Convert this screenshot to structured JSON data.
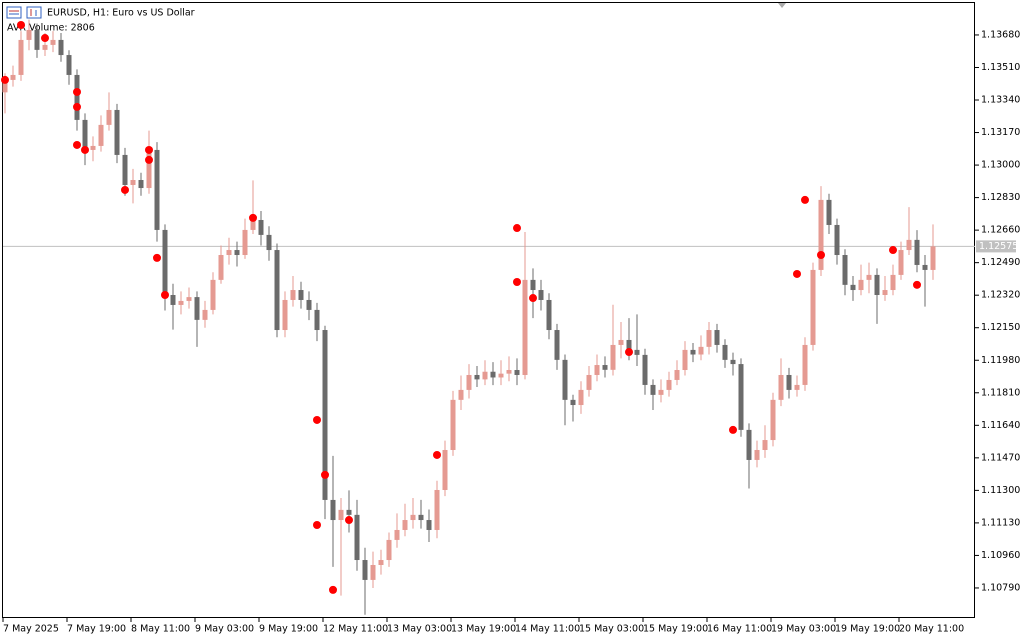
{
  "chart_data": {
    "type": "candlestick",
    "title": "EURUSD, H1:  Euro vs US Dollar",
    "indicator": "AVR Volume: 2806",
    "up_color": "#e59a92",
    "down_color": "#6b6b6b",
    "open": [
      1.1338,
      1.13445,
      1.13471,
      1.13654,
      1.13706,
      1.13602,
      1.13628,
      1.13654,
      1.13575,
      1.13471,
      1.13236,
      1.13079,
      1.131,
      1.1321,
      1.13288,
      1.13053,
      1.12896,
      1.12922,
      1.1288,
      1.13079,
      1.12661,
      1.12321,
      1.12269,
      1.1229,
      1.1231,
      1.12191,
      1.12243,
      1.124,
      1.1253,
      1.12556,
      1.1253,
      1.12661,
      1.12713,
      1.12635,
      1.12556,
      1.12138,
      1.12295,
      1.12347,
      1.12295,
      1.12243,
      1.12138,
      1.1125,
      1.11145,
      1.11198,
      1.11172,
      1.10936,
      1.10832,
      1.1091,
      1.10936,
      1.11041,
      1.11093,
      1.11145,
      1.11172,
      1.11145,
      1.11093,
      1.11302,
      1.11511,
      1.11773,
      1.11825,
      1.11903,
      1.1188,
      1.1192,
      1.1189,
      1.1191,
      1.11929,
      1.11903,
      1.124,
      1.12347,
      1.12295,
      1.12138,
      1.11982,
      1.11773,
      1.11746,
      1.11825,
      1.11903,
      1.11955,
      1.1193,
      1.1206,
      1.12086,
      1.12034,
      1.12008,
      1.11851,
      1.11799,
      1.11825,
      1.11877,
      1.11929,
      1.12034,
      1.1201,
      1.1205,
      1.12138,
      1.1206,
      1.11982,
      1.1196,
      1.11616,
      1.11459,
      1.11511,
      1.11563,
      1.11773,
      1.11903,
      1.11825,
      1.11851,
      1.1206,
      1.12452,
      1.12818,
      1.12687,
      1.1253,
      1.12374,
      1.12347,
      1.124,
      1.12426,
      1.12321,
      1.12347,
      1.12426,
      1.12556,
      1.12609,
      1.12478,
      1.12452
    ],
    "high": [
      1.1348,
      1.1352,
      1.137,
      1.1376,
      1.1374,
      1.1369,
      1.137,
      1.1369,
      1.136,
      1.135,
      1.1327,
      1.1315,
      1.1326,
      1.1338,
      1.1332,
      1.1309,
      1.1298,
      1.1296,
      1.1318,
      1.1312,
      1.1269,
      1.1238,
      1.1234,
      1.1236,
      1.1234,
      1.1229,
      1.1244,
      1.1258,
      1.1262,
      1.126,
      1.1272,
      1.1292,
      1.1276,
      1.1268,
      1.1259,
      1.1234,
      1.1242,
      1.1239,
      1.1234,
      1.1228,
      1.1216,
      1.1148,
      1.1126,
      1.113,
      1.1125,
      1.11,
      1.1098,
      1.1099,
      1.1108,
      1.1118,
      1.1123,
      1.1126,
      1.1125,
      1.112,
      1.1135,
      1.1156,
      1.1182,
      1.119,
      1.1196,
      1.1195,
      1.1198,
      1.1197,
      1.1198,
      1.12,
      1.1199,
      1.1265,
      1.1246,
      1.124,
      1.1233,
      1.1217,
      1.1201,
      1.118,
      1.1187,
      1.1195,
      1.1201,
      1.12,
      1.1227,
      1.1218,
      1.122,
      1.1222,
      1.1204,
      1.1188,
      1.1188,
      1.1192,
      1.1198,
      1.1208,
      1.1207,
      1.1211,
      1.1218,
      1.1217,
      1.1209,
      1.1202,
      1.1199,
      1.1165,
      1.1156,
      1.1164,
      1.1181,
      1.1199,
      1.1194,
      1.119,
      1.121,
      1.1249,
      1.1289,
      1.1285,
      1.1272,
      1.1256,
      1.1242,
      1.1248,
      1.1249,
      1.1246,
      1.1242,
      1.1248,
      1.126,
      1.1278,
      1.1266,
      1.1253,
      1.1269
    ],
    "low": [
      1.1327,
      1.1341,
      1.1344,
      1.136,
      1.1356,
      1.1357,
      1.1359,
      1.1354,
      1.1342,
      1.1318,
      1.13,
      1.1302,
      1.1307,
      1.1318,
      1.1301,
      1.1284,
      1.128,
      1.1284,
      1.1285,
      1.126,
      1.1224,
      1.1214,
      1.1222,
      1.1225,
      1.1205,
      1.1215,
      1.1222,
      1.1238,
      1.1248,
      1.1247,
      1.1251,
      1.1264,
      1.1258,
      1.125,
      1.121,
      1.121,
      1.1226,
      1.1225,
      1.1219,
      1.1208,
      1.1115,
      1.109,
      1.1075,
      1.1108,
      1.1088,
      1.1065,
      1.1079,
      1.1086,
      1.109,
      1.11,
      1.1106,
      1.111,
      1.111,
      1.1103,
      1.1105,
      1.1127,
      1.1148,
      1.1172,
      1.1178,
      1.1184,
      1.1185,
      1.1185,
      1.1185,
      1.1187,
      1.1185,
      1.1188,
      1.122,
      1.1224,
      1.1209,
      1.1193,
      1.1164,
      1.1166,
      1.117,
      1.1179,
      1.1187,
      1.1189,
      1.119,
      1.1199,
      1.1198,
      1.1195,
      1.118,
      1.1172,
      1.1176,
      1.1179,
      1.1185,
      1.119,
      1.1197,
      1.1198,
      1.1201,
      1.1202,
      1.1194,
      1.119,
      1.1158,
      1.1131,
      1.1142,
      1.1147,
      1.1153,
      1.1174,
      1.1178,
      1.1179,
      1.1182,
      1.1203,
      1.1242,
      1.1264,
      1.1248,
      1.1232,
      1.1229,
      1.1232,
      1.1233,
      1.1217,
      1.1229,
      1.1232,
      1.124,
      1.1253,
      1.1244,
      1.1226,
      1.124
    ],
    "close": [
      1.13445,
      1.13471,
      1.13654,
      1.13706,
      1.13602,
      1.13628,
      1.13654,
      1.13575,
      1.13471,
      1.13236,
      1.13079,
      1.131,
      1.1321,
      1.13288,
      1.13053,
      1.12896,
      1.12922,
      1.1288,
      1.13079,
      1.12661,
      1.12321,
      1.12269,
      1.1229,
      1.1231,
      1.12191,
      1.12243,
      1.124,
      1.1253,
      1.12556,
      1.1253,
      1.12661,
      1.12713,
      1.12635,
      1.12556,
      1.12138,
      1.12295,
      1.12347,
      1.12295,
      1.12243,
      1.12138,
      1.1125,
      1.11145,
      1.11198,
      1.11172,
      1.10936,
      1.10832,
      1.1091,
      1.10936,
      1.11041,
      1.11093,
      1.11145,
      1.11172,
      1.11145,
      1.11093,
      1.11302,
      1.11511,
      1.11773,
      1.11825,
      1.11903,
      1.1188,
      1.1192,
      1.1189,
      1.1191,
      1.11929,
      1.11903,
      1.124,
      1.12347,
      1.12295,
      1.12138,
      1.11982,
      1.11773,
      1.11746,
      1.11825,
      1.11903,
      1.11955,
      1.1193,
      1.1206,
      1.12086,
      1.12034,
      1.12008,
      1.11851,
      1.11799,
      1.11825,
      1.11877,
      1.11929,
      1.12034,
      1.1201,
      1.1205,
      1.12138,
      1.1206,
      1.11982,
      1.1196,
      1.11616,
      1.11459,
      1.11511,
      1.11563,
      1.11773,
      1.11903,
      1.11825,
      1.11851,
      1.1206,
      1.12452,
      1.12818,
      1.12687,
      1.1253,
      1.12374,
      1.12347,
      1.124,
      1.12426,
      1.12321,
      1.12347,
      1.12426,
      1.12556,
      1.12609,
      1.12478,
      1.12452,
      1.12575
    ],
    "markers": {
      "color": "#ff0000",
      "x": [
        0,
        2,
        5,
        9,
        9,
        9,
        10,
        15,
        18,
        18,
        19,
        20,
        31,
        39,
        40,
        39,
        41,
        43,
        54,
        64,
        64,
        66,
        78,
        91,
        99,
        100,
        102,
        111,
        114
      ],
      "values": [
        1.13445,
        1.13732,
        1.13664,
        1.13382,
        1.13304,
        1.13105,
        1.13079,
        1.1287,
        1.13027,
        1.13079,
        1.12515,
        1.12321,
        1.12724,
        1.11668,
        1.11381,
        1.11119,
        1.1078,
        1.11145,
        1.11485,
        1.12671,
        1.12389,
        1.12305,
        1.12023,
        1.11616,
        1.12431,
        1.12818,
        1.1253,
        1.12556,
        1.12374
      ]
    },
    "price_line": 1.12575,
    "price_line_color": "#c0c0c0",
    "ylim": [
      1.10633,
      1.13847
    ],
    "yticks": [
      {
        "value": 1.1079,
        "label": "1.10790"
      },
      {
        "value": 1.1096,
        "label": "1.10960"
      },
      {
        "value": 1.1113,
        "label": "1.11130"
      },
      {
        "value": 1.113,
        "label": "1.11300"
      },
      {
        "value": 1.1147,
        "label": "1.11470"
      },
      {
        "value": 1.1164,
        "label": "1.11640"
      },
      {
        "value": 1.1181,
        "label": "1.11810"
      },
      {
        "value": 1.1198,
        "label": "1.11980"
      },
      {
        "value": 1.1215,
        "label": "1.12150"
      },
      {
        "value": 1.1232,
        "label": "1.12320"
      },
      {
        "value": 1.1249,
        "label": "1.12490"
      },
      {
        "value": 1.1266,
        "label": "1.12660"
      },
      {
        "value": 1.1283,
        "label": "1.12830"
      },
      {
        "value": 1.13,
        "label": "1.13000"
      },
      {
        "value": 1.1317,
        "label": "1.13170"
      },
      {
        "value": 1.1334,
        "label": "1.13340"
      },
      {
        "value": 1.1351,
        "label": "1.13510"
      },
      {
        "value": 1.1368,
        "label": "1.13680"
      }
    ],
    "xticks": [
      {
        "value": 0,
        "label": "7 May 2025"
      },
      {
        "value": 8,
        "label": "7 May 19:00"
      },
      {
        "value": 16,
        "label": "8 May 11:00"
      },
      {
        "value": 24,
        "label": "9 May 03:00"
      },
      {
        "value": 32,
        "label": "9 May 19:00"
      },
      {
        "value": 40,
        "label": "12 May 11:00"
      },
      {
        "value": 48,
        "label": "13 May 03:00"
      },
      {
        "value": 56,
        "label": "13 May 19:00"
      },
      {
        "value": 64,
        "label": "14 May 11:00"
      },
      {
        "value": 72,
        "label": "15 May 03:00"
      },
      {
        "value": 80,
        "label": "15 May 19:00"
      },
      {
        "value": 88,
        "label": "16 May 11:00"
      },
      {
        "value": 96,
        "label": "19 May 03:00"
      },
      {
        "value": 104,
        "label": "19 May 19:00"
      },
      {
        "value": 112,
        "label": "20 May 11:00"
      }
    ]
  }
}
